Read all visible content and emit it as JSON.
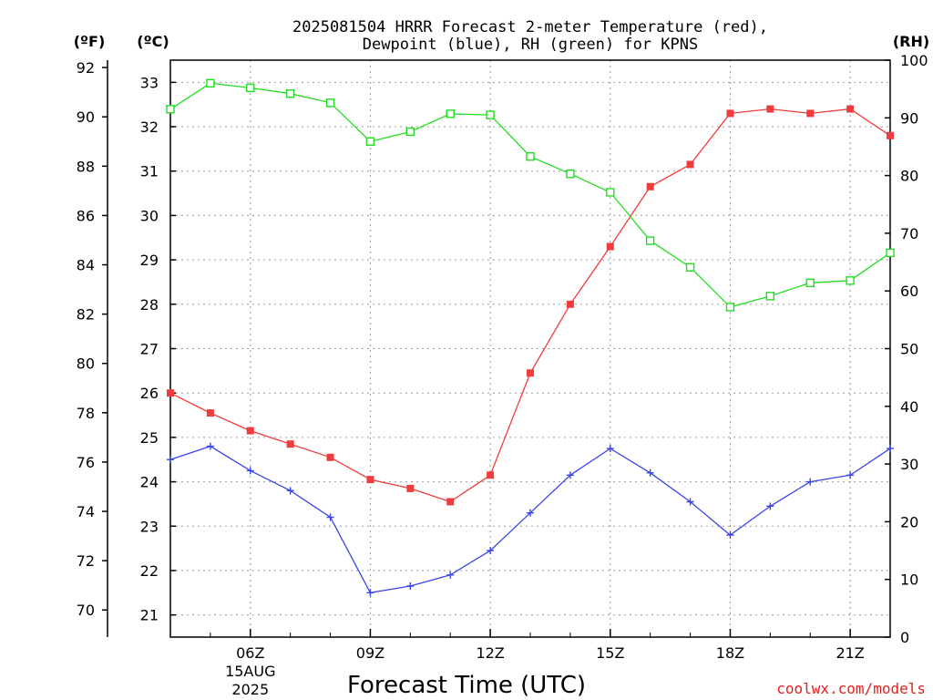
{
  "chart_data": {
    "type": "line",
    "title_line1": "2025081504 HRRR Forecast 2-meter Temperature (red),",
    "title_line2": "Dewpoint (blue), RH (green) for KPNS",
    "xlabel": "Forecast Time (UTC)",
    "credit": "coolwx.com/models",
    "units": {
      "fahrenheit": "(ºF)",
      "celsius": "(ºC)",
      "rh": "(RH)"
    },
    "x_hours": [
      4,
      5,
      6,
      7,
      8,
      9,
      10,
      11,
      12,
      13,
      14,
      15,
      16,
      17,
      18,
      19,
      20,
      21,
      22
    ],
    "x_ticks": [
      {
        "hour": 6,
        "label": "06Z",
        "label2": "15AUG",
        "label3": "2025"
      },
      {
        "hour": 9,
        "label": "09Z"
      },
      {
        "hour": 12,
        "label": "12Z"
      },
      {
        "hour": 15,
        "label": "15Z"
      },
      {
        "hour": 18,
        "label": "18Z"
      },
      {
        "hour": 21,
        "label": "21Z"
      }
    ],
    "xlim": [
      4,
      22
    ],
    "celsius_axis": {
      "ylim": [
        20.5,
        33.5
      ],
      "ticks": [
        21,
        22,
        23,
        24,
        25,
        26,
        27,
        28,
        29,
        30,
        31,
        32,
        33
      ]
    },
    "fahrenheit_axis": {
      "ticks": [
        70,
        72,
        74,
        76,
        78,
        80,
        82,
        84,
        86,
        88,
        90,
        92
      ]
    },
    "rh_axis": {
      "ylim": [
        0,
        100
      ],
      "ticks": [
        0,
        10,
        20,
        30,
        40,
        50,
        60,
        70,
        80,
        90,
        100
      ]
    },
    "series": [
      {
        "key": "temperature",
        "color": "#f03c3c",
        "marker": "filled-square",
        "axis": "celsius",
        "values": [
          26.0,
          25.55,
          25.15,
          24.85,
          24.55,
          24.05,
          23.85,
          23.55,
          24.15,
          26.45,
          28.0,
          29.3,
          30.65,
          31.15,
          32.3,
          32.4,
          32.3,
          32.4,
          31.8
        ]
      },
      {
        "key": "dewpoint",
        "color": "#3a46e8",
        "marker": "plus",
        "axis": "celsius",
        "values": [
          24.5,
          24.8,
          24.25,
          23.8,
          23.2,
          21.5,
          21.65,
          21.9,
          22.45,
          23.3,
          24.15,
          24.75,
          24.2,
          23.55,
          22.8,
          23.45,
          24.0,
          24.15,
          24.75
        ]
      },
      {
        "key": "rh",
        "color": "#22dd22",
        "marker": "open-square",
        "axis": "rh",
        "values": [
          91.5,
          96.0,
          95.2,
          94.2,
          92.6,
          85.9,
          87.6,
          90.7,
          90.5,
          83.3,
          80.3,
          77.1,
          68.7,
          64.1,
          57.2,
          59.1,
          61.4,
          61.8,
          66.6
        ]
      }
    ]
  }
}
